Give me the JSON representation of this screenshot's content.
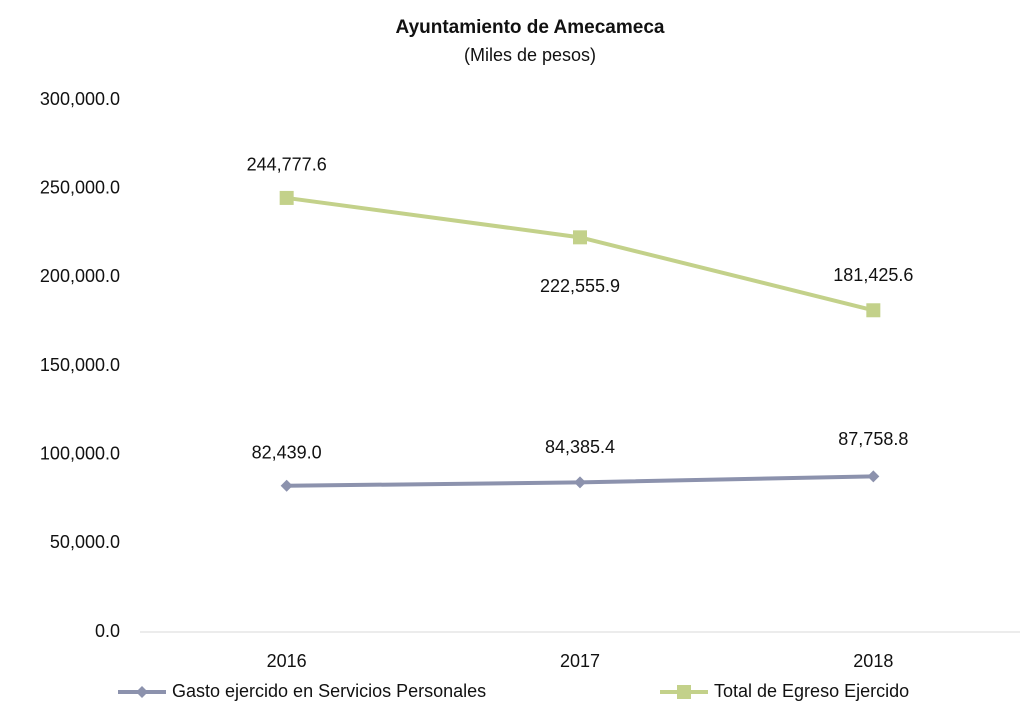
{
  "chart_data": {
    "type": "line",
    "title": "Ayuntamiento de Amecameca",
    "subtitle": "(Miles de pesos)",
    "categories": [
      "2016",
      "2017",
      "2018"
    ],
    "series": [
      {
        "name": "Gasto ejercido en Servicios Personales",
        "color": "#8c92ad",
        "values": [
          82439.0,
          84385.4,
          87758.8
        ],
        "value_labels": [
          "82,439.0",
          "84,385.4",
          "87,758.8"
        ]
      },
      {
        "name": "Total de Egreso Ejercido",
        "color": "#c3d18a",
        "values": [
          244777.6,
          222555.9,
          181425.6
        ],
        "value_labels": [
          "244,777.6",
          "222,555.9",
          "181,425.6"
        ]
      }
    ],
    "ylim": [
      0,
      300000
    ],
    "yticks": [
      {
        "value": 0,
        "label": "0.0"
      },
      {
        "value": 50000,
        "label": "50,000.0"
      },
      {
        "value": 100000,
        "label": "100,000.0"
      },
      {
        "value": 150000,
        "label": "150,000.0"
      },
      {
        "value": 200000,
        "label": "200,000.0"
      },
      {
        "value": 250000,
        "label": "250,000.0"
      },
      {
        "value": 300000,
        "label": "300,000.0"
      }
    ],
    "grid": false,
    "legend": "bottom"
  }
}
